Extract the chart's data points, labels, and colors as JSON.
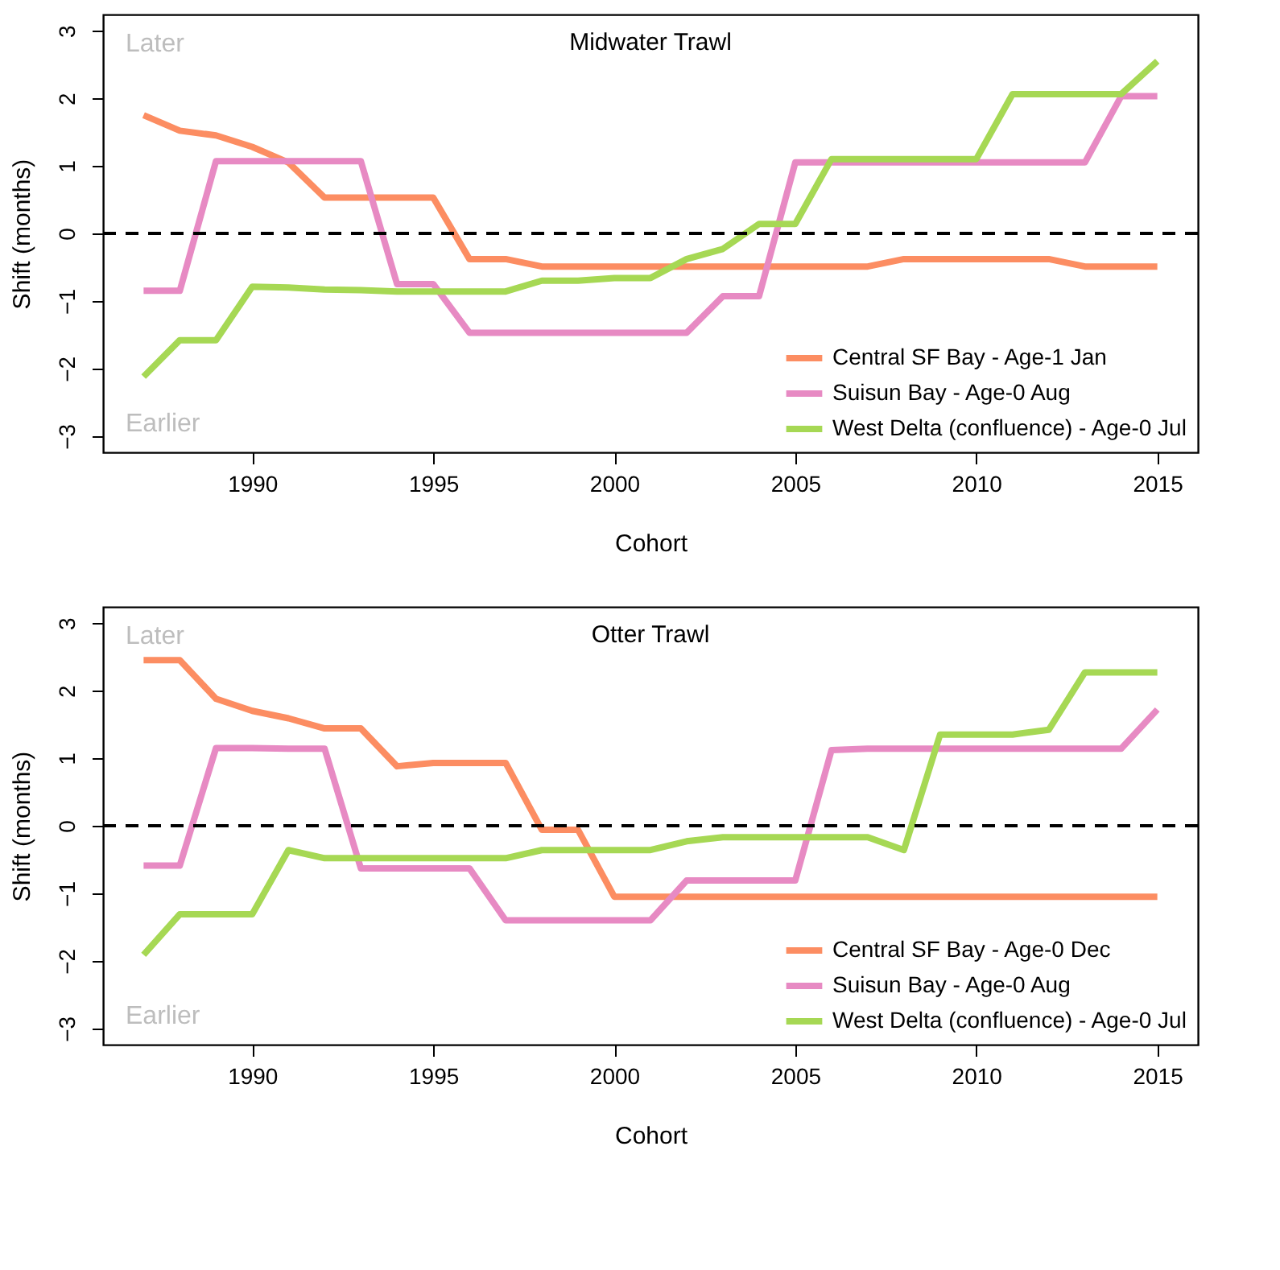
{
  "chart_data": [
    {
      "type": "line",
      "title": "Midwater Trawl",
      "xlabel": "Cohort",
      "ylabel": "Shift (months)",
      "x": [
        1987,
        1988,
        1989,
        1990,
        1991,
        1992,
        1993,
        1994,
        1995,
        1996,
        1997,
        1998,
        1999,
        2000,
        2001,
        2002,
        2003,
        2004,
        2005,
        2006,
        2007,
        2008,
        2009,
        2010,
        2011,
        2012,
        2013,
        2014,
        2015
      ],
      "series": [
        {
          "name": "Central SF Bay - Age-1 Jan",
          "color": "#fc8d62",
          "values": [
            1.75,
            1.52,
            1.45,
            1.28,
            1.05,
            0.53,
            0.53,
            0.53,
            0.53,
            -0.38,
            -0.38,
            -0.49,
            -0.49,
            -0.49,
            -0.49,
            -0.49,
            -0.49,
            -0.49,
            -0.49,
            -0.49,
            -0.49,
            -0.38,
            -0.38,
            -0.38,
            -0.38,
            -0.38,
            -0.49,
            -0.49,
            -0.49
          ]
        },
        {
          "name": "Suisun Bay - Age-0 Aug",
          "color": "#e78ac3",
          "values": [
            -0.85,
            -0.85,
            1.07,
            1.07,
            1.07,
            1.07,
            1.07,
            -0.75,
            -0.75,
            -1.47,
            -1.47,
            -1.47,
            -1.47,
            -1.47,
            -1.47,
            -1.47,
            -0.93,
            -0.93,
            1.05,
            1.05,
            1.05,
            1.05,
            1.05,
            1.05,
            1.05,
            1.05,
            1.05,
            2.03,
            2.03
          ]
        },
        {
          "name": "West Delta (confluence) - Age-0 Jul",
          "color": "#a6d854",
          "values": [
            -2.12,
            -1.58,
            -1.58,
            -0.79,
            -0.8,
            -0.83,
            -0.84,
            -0.86,
            -0.86,
            -0.86,
            -0.86,
            -0.7,
            -0.7,
            -0.66,
            -0.66,
            -0.38,
            -0.23,
            0.14,
            0.14,
            1.1,
            1.1,
            1.1,
            1.1,
            1.1,
            2.06,
            2.06,
            2.06,
            2.06,
            2.55
          ]
        }
      ],
      "annotations": [
        "Later",
        "Earlier"
      ],
      "ref_lines": [
        {
          "axis": "y",
          "value": 0,
          "color": "#000000",
          "line_style": "dashed"
        }
      ],
      "xlim": [
        1985.88,
        2016.12
      ],
      "ylim": [
        -3.24,
        3.24
      ],
      "xticks": [
        1990,
        1995,
        2000,
        2005,
        2010,
        2015
      ],
      "yticks": [
        -3,
        -2,
        -1,
        0,
        1,
        2,
        3
      ],
      "grid": false,
      "legend": "bottom right",
      "line_style": "solid",
      "marker": "none"
    },
    {
      "type": "line",
      "title": "Otter Trawl",
      "xlabel": "Cohort",
      "ylabel": "Shift (months)",
      "x": [
        1987,
        1988,
        1989,
        1990,
        1991,
        1992,
        1993,
        1994,
        1995,
        1996,
        1997,
        1998,
        1999,
        2000,
        2001,
        2002,
        2003,
        2004,
        2005,
        2006,
        2007,
        2008,
        2009,
        2010,
        2011,
        2012,
        2013,
        2014,
        2015
      ],
      "series": [
        {
          "name": "Central SF Bay - Age-0 Dec",
          "color": "#fc8d62",
          "values": [
            2.45,
            2.45,
            1.88,
            1.7,
            1.59,
            1.44,
            1.44,
            0.88,
            0.93,
            0.93,
            0.93,
            -0.06,
            -0.06,
            -1.05,
            -1.05,
            -1.05,
            -1.05,
            -1.05,
            -1.05,
            -1.05,
            -1.05,
            -1.05,
            -1.05,
            -1.05,
            -1.05,
            -1.05,
            -1.05,
            -1.05,
            -1.05
          ]
        },
        {
          "name": "Suisun Bay - Age-0 Aug",
          "color": "#e78ac3",
          "values": [
            -0.59,
            -0.59,
            1.15,
            1.15,
            1.14,
            1.14,
            -0.63,
            -0.63,
            -0.63,
            -0.63,
            -1.4,
            -1.4,
            -1.4,
            -1.4,
            -1.4,
            -0.81,
            -0.81,
            -0.81,
            -0.81,
            1.12,
            1.14,
            1.14,
            1.14,
            1.14,
            1.14,
            1.14,
            1.14,
            1.14,
            1.72
          ]
        },
        {
          "name": "West Delta (confluence) - Age-0 Jul",
          "color": "#a6d854",
          "values": [
            -1.91,
            -1.31,
            -1.31,
            -1.31,
            -0.36,
            -0.48,
            -0.48,
            -0.48,
            -0.48,
            -0.48,
            -0.48,
            -0.36,
            -0.36,
            -0.36,
            -0.36,
            -0.23,
            -0.17,
            -0.17,
            -0.17,
            -0.17,
            -0.17,
            -0.36,
            1.35,
            1.35,
            1.35,
            1.42,
            2.27,
            2.27,
            2.27
          ]
        }
      ],
      "annotations": [
        "Later",
        "Earlier"
      ],
      "ref_lines": [
        {
          "axis": "y",
          "value": 0,
          "color": "#000000",
          "line_style": "dashed"
        }
      ],
      "xlim": [
        1985.88,
        2016.12
      ],
      "ylim": [
        -3.24,
        3.24
      ],
      "xticks": [
        1990,
        1995,
        2000,
        2005,
        2010,
        2015
      ],
      "yticks": [
        -3,
        -2,
        -1,
        0,
        1,
        2,
        3
      ],
      "grid": false,
      "legend": "bottom right",
      "line_style": "solid",
      "marker": "none"
    }
  ]
}
